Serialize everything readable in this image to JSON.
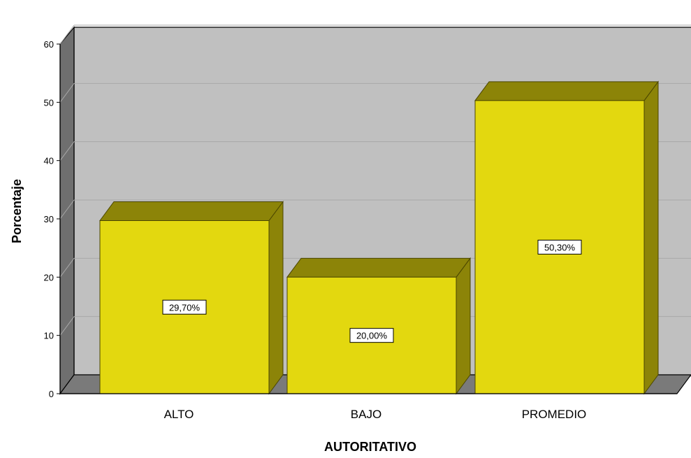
{
  "chart_data": {
    "type": "bar",
    "style": "3d",
    "categories": [
      "ALTO",
      "BAJO",
      "PROMEDIO"
    ],
    "values": [
      29.7,
      20.0,
      50.3
    ],
    "data_labels": [
      "29,70%",
      "20,00%",
      "50,30%"
    ],
    "xlabel": "AUTORITATIVO",
    "ylabel": "Porcentaje",
    "ylim": [
      0,
      60
    ],
    "yticks": [
      0,
      10,
      20,
      30,
      40,
      50,
      60
    ],
    "grid": true,
    "legend": "none",
    "colors": {
      "bar_front": "#e3d80f",
      "bar_top": "#8c8408",
      "bar_side": "#8c8408",
      "plot_background": "#c0c0c0",
      "wall_side": "#6f6f6f",
      "floor": "#7a7a7a",
      "gridline": "#a8a8a8"
    }
  }
}
